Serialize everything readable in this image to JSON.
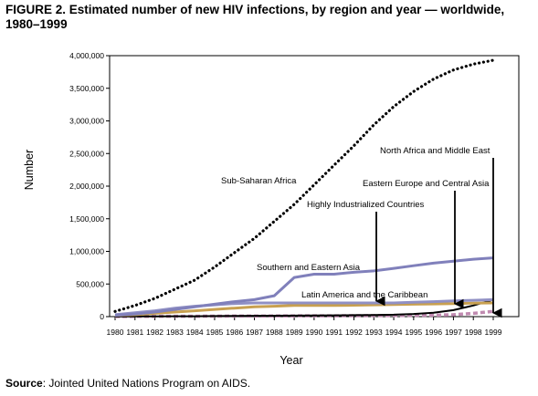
{
  "figure": {
    "title": "FIGURE 2. Estimated number of new HIV infections, by region and year — worldwide, 1980–1999",
    "source_label": "Source",
    "source_text": ": Jointed United Nations Program on AIDS."
  },
  "chart_data": {
    "type": "line",
    "xlabel": "Year",
    "ylabel": "Number",
    "ylim": [
      0,
      4000000
    ],
    "x": [
      1980,
      1981,
      1982,
      1983,
      1984,
      1985,
      1986,
      1987,
      1988,
      1989,
      1990,
      1991,
      1992,
      1993,
      1994,
      1995,
      1996,
      1997,
      1998,
      1999
    ],
    "y_ticks": [
      "0",
      "500,000",
      "1,000,000",
      "1,500,000",
      "2,000,000",
      "2,500,000",
      "3,000,000",
      "3,500,000",
      "4,000,000"
    ],
    "grid": false,
    "series": [
      {
        "name": "Sub-Saharan Africa",
        "color": "#000000",
        "style": "dotted",
        "values": [
          80000,
          170000,
          280000,
          420000,
          560000,
          760000,
          980000,
          1200000,
          1460000,
          1720000,
          2020000,
          2320000,
          2620000,
          2940000,
          3220000,
          3450000,
          3640000,
          3780000,
          3870000,
          3930000
        ]
      },
      {
        "name": "Southern and Eastern Asia",
        "color": "#8080bb",
        "style": "solid",
        "values": [
          20000,
          40000,
          70000,
          110000,
          150000,
          190000,
          230000,
          260000,
          320000,
          600000,
          650000,
          650000,
          680000,
          700000,
          740000,
          780000,
          820000,
          850000,
          880000,
          900000
        ]
      },
      {
        "name": "Highly Industrialized Countries",
        "color": "#9090c4",
        "style": "solid",
        "values": [
          30000,
          60000,
          90000,
          130000,
          160000,
          180000,
          200000,
          210000,
          210000,
          210000,
          210000,
          210000,
          210000,
          210000,
          210000,
          220000,
          230000,
          240000,
          250000,
          260000
        ]
      },
      {
        "name": "Latin America and the Caribbean",
        "color": "#c8a050",
        "style": "solid",
        "values": [
          20000,
          30000,
          50000,
          70000,
          90000,
          110000,
          130000,
          150000,
          160000,
          170000,
          170000,
          170000,
          175000,
          180000,
          185000,
          190000,
          195000,
          200000,
          205000,
          210000
        ]
      },
      {
        "name": "Eastern Europe and Central Asia",
        "color": "#000000",
        "style": "solid",
        "values": [
          2000,
          3000,
          4000,
          5000,
          6000,
          8000,
          10000,
          12000,
          14000,
          16000,
          18000,
          20000,
          22000,
          25000,
          30000,
          40000,
          60000,
          100000,
          170000,
          260000
        ]
      },
      {
        "name": "North Africa and  Middle East",
        "color": "#c08ab0",
        "style": "dashed",
        "values": [
          2000,
          3000,
          4000,
          5000,
          6000,
          7000,
          8000,
          9000,
          10000,
          11000,
          12000,
          13000,
          14000,
          15000,
          17000,
          19000,
          22000,
          30000,
          50000,
          80000
        ]
      }
    ],
    "annotations": [
      {
        "text": "Sub-Saharan Africa"
      },
      {
        "text": "North Africa and  Middle East"
      },
      {
        "text": "Eastern Europe and Central Asia"
      },
      {
        "text": "Highly Industrialized Countries"
      },
      {
        "text": "Southern and Eastern Asia"
      },
      {
        "text": "Latin America and the Caribbean"
      }
    ]
  }
}
